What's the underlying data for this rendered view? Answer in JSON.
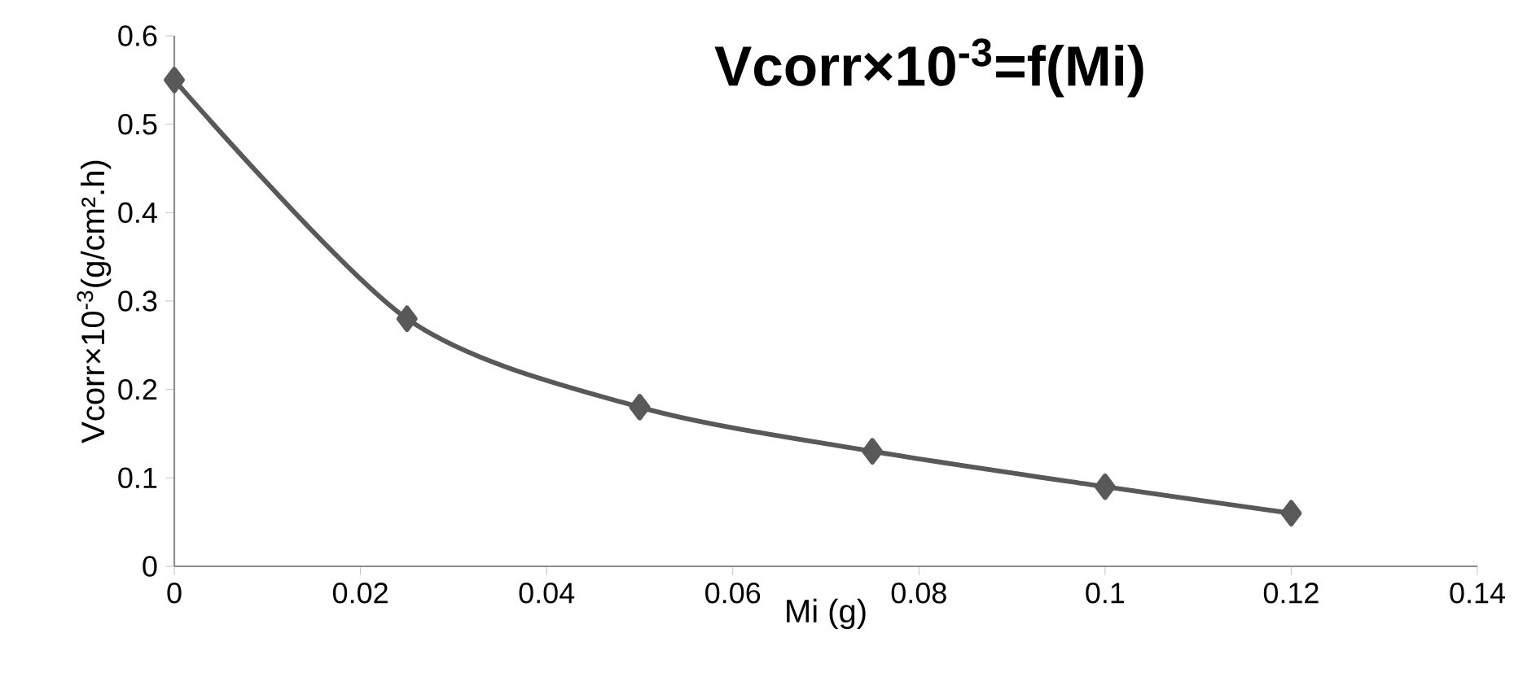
{
  "chart_data": {
    "type": "line",
    "title": "**Vcorr×10$^{-3}$=f(Mi)**",
    "xlabel": "Mi (g)",
    "ylabel": "Vcorr×10$^{-3}$(g/cm².h)",
    "x": [
      0,
      0.025,
      0.05,
      0.075,
      0.1,
      0.12
    ],
    "series": [
      {
        "color": "#595959",
        "values": [
          0.55,
          0.28,
          0.18,
          0.13,
          0.09,
          0.06
        ]
      }
    ],
    "xlim": [
      0,
      0.14
    ],
    "xticks": [
      0,
      0.02,
      0.04,
      0.06,
      0.08,
      0.1,
      0.12,
      0.14
    ],
    "ylim": [
      0,
      0.6
    ],
    "yticks": [
      0,
      0.1,
      0.2,
      0.3,
      0.4,
      0.5,
      0.6
    ],
    "marker": "diamond",
    "line_style": "solid"
  }
}
